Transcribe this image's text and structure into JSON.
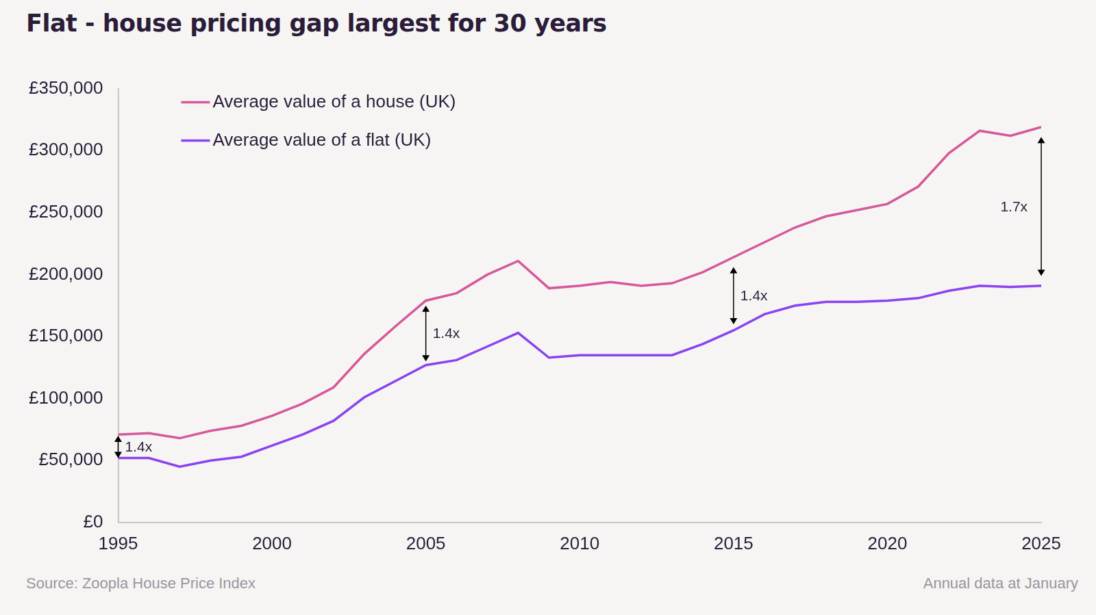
{
  "chart_data": {
    "type": "line",
    "title": "Flat - house pricing gap largest for 30 years",
    "source": "Source: Zoopla House Price Index",
    "note": "Annual data at January",
    "x": [
      1995,
      1996,
      1997,
      1998,
      1999,
      2000,
      2001,
      2002,
      2003,
      2004,
      2005,
      2006,
      2007,
      2008,
      2009,
      2010,
      2011,
      2012,
      2013,
      2014,
      2015,
      2016,
      2017,
      2018,
      2019,
      2020,
      2021,
      2022,
      2023,
      2024,
      2025
    ],
    "series": [
      {
        "name": "Average value of a house (UK)",
        "color": "#d6589b",
        "values": [
          71000,
          72000,
          68000,
          74000,
          78000,
          86000,
          96000,
          109000,
          136000,
          158000,
          179000,
          185000,
          200000,
          211000,
          189000,
          191000,
          194000,
          191000,
          193000,
          202000,
          214000,
          226000,
          238000,
          247000,
          252000,
          257000,
          271000,
          298000,
          316000,
          312000,
          319000
        ]
      },
      {
        "name": "Average value of a flat (UK)",
        "color": "#8a43f0",
        "values": [
          52000,
          52000,
          45000,
          50000,
          53000,
          62000,
          71000,
          82000,
          101000,
          114000,
          127000,
          131000,
          142000,
          153000,
          133000,
          135000,
          135000,
          135000,
          135000,
          144000,
          155000,
          168000,
          175000,
          178000,
          178000,
          179000,
          181000,
          187000,
          191000,
          190000,
          191000
        ]
      }
    ],
    "xlim": [
      1995,
      2025
    ],
    "xticks": [
      1995,
      2000,
      2005,
      2010,
      2015,
      2020,
      2025
    ],
    "ylim": [
      0,
      350000
    ],
    "yticks": [
      {
        "value": 0,
        "label": "£0"
      },
      {
        "value": 50000,
        "label": "£50,000"
      },
      {
        "value": 100000,
        "label": "£100,000"
      },
      {
        "value": 150000,
        "label": "£150,000"
      },
      {
        "value": 200000,
        "label": "£200,000"
      },
      {
        "value": 250000,
        "label": "£250,000"
      },
      {
        "value": 300000,
        "label": "£300,000"
      },
      {
        "value": 350000,
        "label": "£350,000"
      }
    ],
    "grid": false,
    "legend": "upper left",
    "annotations": [
      {
        "x": 1995,
        "y_from": 70000,
        "y_to": 52000,
        "label": "1.4x"
      },
      {
        "x": 2005,
        "y_from": 175000,
        "y_to": 130000,
        "label": "1.4x"
      },
      {
        "x": 2015,
        "y_from": 206000,
        "y_to": 160000,
        "label": "1.4x"
      },
      {
        "x": 2025,
        "y_from": 311000,
        "y_to": 199000,
        "label": "1.7x"
      }
    ]
  }
}
